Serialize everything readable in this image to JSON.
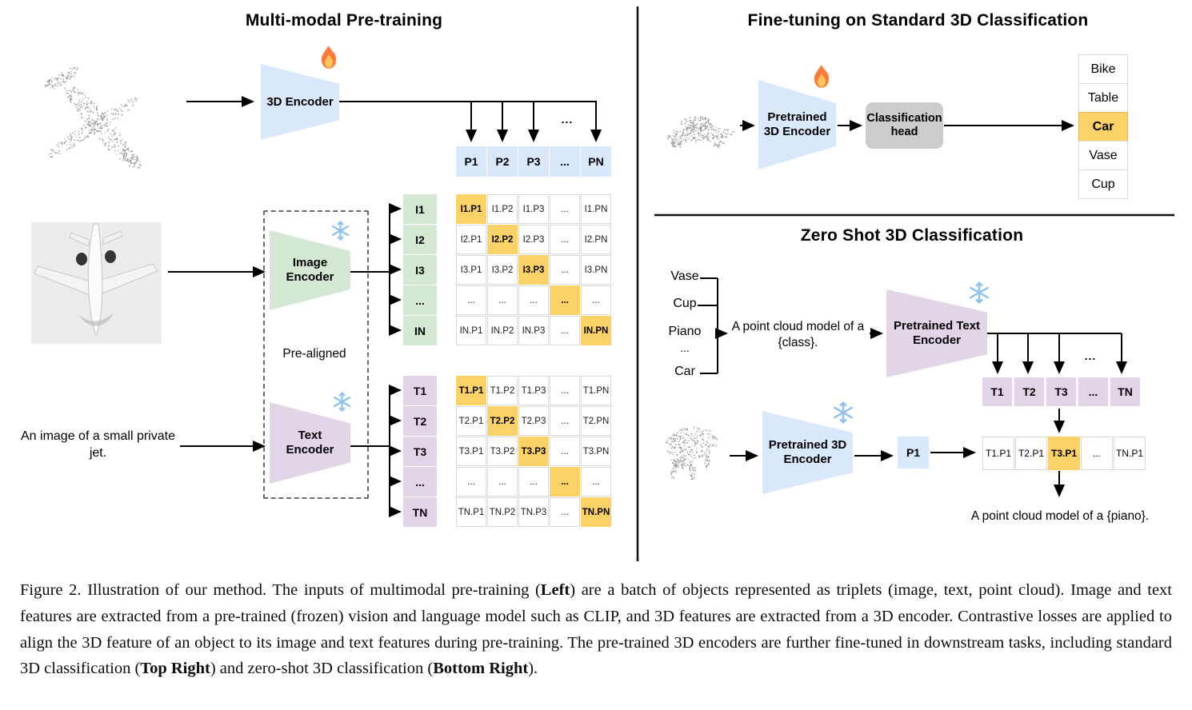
{
  "colors": {
    "encoder_blue": "#dae8fc",
    "encoder_green": "#d5e8d4",
    "encoder_purple": "#e1d5e7",
    "highlight_orange": "#fbd267",
    "head_gray": "#cccccc"
  },
  "icons": {
    "trainable": "fire-icon",
    "frozen": "snowflake-icon"
  },
  "pretraining": {
    "title": "Multi-modal Pre-training",
    "encoder_3d_label": "3D Encoder",
    "image_encoder_label": "Image Encoder",
    "text_encoder_label": "Text Encoder",
    "prealigned_label": "Pre-aligned",
    "image_caption": "An image of a small private jet.",
    "branch_ellipsis": "...",
    "p_row": [
      "P1",
      "P2",
      "P3",
      "...",
      "PN"
    ],
    "image_rows": [
      "I1",
      "I2",
      "I3",
      "...",
      "IN"
    ],
    "text_rows": [
      "T1",
      "T2",
      "T3",
      "...",
      "TN"
    ],
    "image_matrix": [
      [
        "I1.P1",
        "I1.P2",
        "I1.P3",
        "...",
        "I1.PN"
      ],
      [
        "I2.P1",
        "I2.P2",
        "I2.P3",
        "...",
        "I2.PN"
      ],
      [
        "I3.P1",
        "I3.P2",
        "I3.P3",
        "...",
        "I3.PN"
      ],
      [
        "...",
        "...",
        "...",
        "...",
        "..."
      ],
      [
        "IN.P1",
        "IN.P2",
        "IN.P3",
        "...",
        "IN.PN"
      ]
    ],
    "text_matrix": [
      [
        "T1.P1",
        "T1.P2",
        "T1.P3",
        "...",
        "T1.PN"
      ],
      [
        "T2.P1",
        "T2.P2",
        "T2.P3",
        "...",
        "T2.PN"
      ],
      [
        "T3.P1",
        "T3.P2",
        "T3.P3",
        "...",
        "T3.PN"
      ],
      [
        "...",
        "...",
        "...",
        "...",
        "..."
      ],
      [
        "TN.P1",
        "TN.P2",
        "TN.P3",
        "...",
        "TN.PN"
      ]
    ]
  },
  "finetune": {
    "title": "Fine-tuning on Standard 3D Classification",
    "encoder_label": "Pretrained 3D Encoder",
    "head_label": "Classification head",
    "classes": [
      "Bike",
      "Table",
      "Car",
      "Vase",
      "Cup"
    ],
    "predicted_class": "Car",
    "predicted_index": 2
  },
  "zeroshot": {
    "title": "Zero Shot 3D Classification",
    "candidate_classes": [
      "Vase",
      "Cup",
      "Piano",
      "...",
      "Car"
    ],
    "prompt": "A point cloud model of a {class}.",
    "text_encoder_label": "Pretrained Text Encoder",
    "encoder_label": "Pretrained 3D Encoder",
    "p1_label": "P1",
    "branch_ellipsis": "...",
    "t_row": [
      "T1",
      "T2",
      "T3",
      "...",
      "TN"
    ],
    "similarity_row": [
      "T1.P1",
      "T2.P1",
      "T3.P1",
      "...",
      "TN.P1"
    ],
    "matched_index": 2,
    "result": "A point cloud model of a {piano}."
  },
  "caption": {
    "segments": [
      {
        "text": "Figure 2. Illustration of our method. The inputs of multimodal pre-training (",
        "bold": false
      },
      {
        "text": "Left",
        "bold": true
      },
      {
        "text": ") are a batch of objects represented as triplets (image, text, point cloud). Image and text features are extracted from a pre-trained (frozen) vision and language model such as CLIP, and 3D features are extracted from a 3D encoder. Contrastive losses are applied to align the 3D feature of an object to its image and text features during pre-training. The pre-trained 3D encoders are further fine-tuned in downstream tasks, including standard 3D classification (",
        "bold": false
      },
      {
        "text": "Top Right",
        "bold": true
      },
      {
        "text": ") and zero-shot 3D classification (",
        "bold": false
      },
      {
        "text": "Bottom Right",
        "bold": true
      },
      {
        "text": ").",
        "bold": false
      }
    ]
  }
}
